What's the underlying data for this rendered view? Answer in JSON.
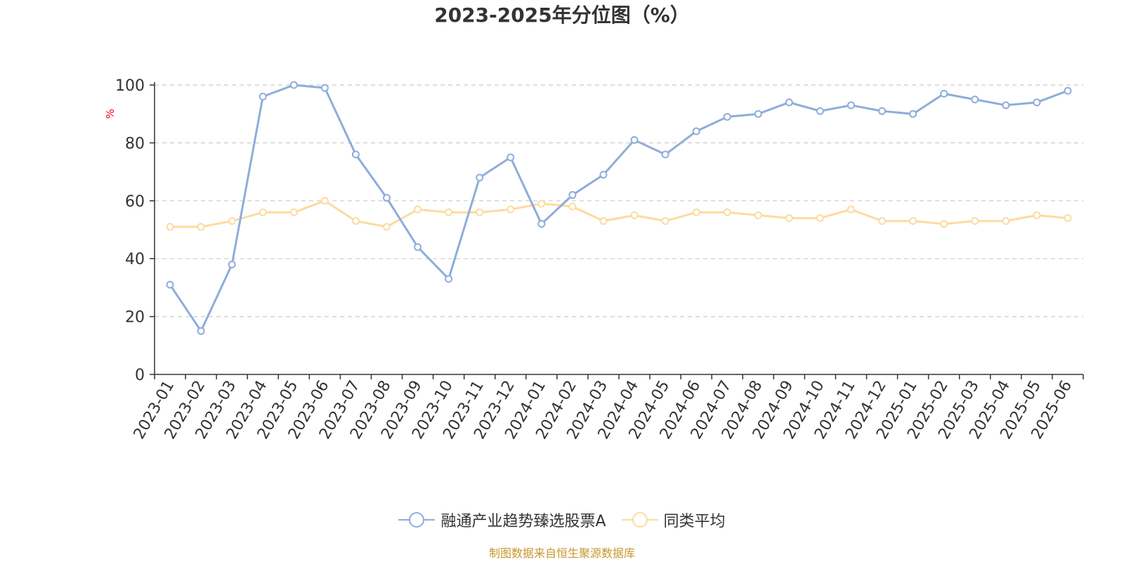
{
  "chart_data": {
    "type": "line",
    "title": "2023-2025年分位图（%）",
    "ylabel": "%",
    "xlabel": "",
    "ylim": [
      0,
      100
    ],
    "yticks": [
      0,
      20,
      40,
      60,
      80,
      100
    ],
    "grid": true,
    "legend_position": "bottom",
    "categories": [
      "2023-01",
      "2023-02",
      "2023-03",
      "2023-04",
      "2023-05",
      "2023-06",
      "2023-07",
      "2023-08",
      "2023-09",
      "2023-10",
      "2023-11",
      "2023-12",
      "2024-01",
      "2024-02",
      "2024-03",
      "2024-04",
      "2024-05",
      "2024-06",
      "2024-07",
      "2024-08",
      "2024-09",
      "2024-10",
      "2024-11",
      "2024-12",
      "2025-01",
      "2025-02",
      "2025-03",
      "2025-04",
      "2025-05",
      "2025-06"
    ],
    "series": [
      {
        "name": "融通产业趋势臻选股票A",
        "color": "#8eadda",
        "values": [
          31,
          15,
          38,
          96,
          100,
          99,
          76,
          61,
          44,
          33,
          68,
          75,
          52,
          62,
          69,
          81,
          76,
          84,
          89,
          90,
          94,
          91,
          93,
          91,
          90,
          97,
          95,
          93,
          94,
          98
        ]
      },
      {
        "name": "同类平均",
        "color": "#fcdba0",
        "values": [
          51,
          51,
          53,
          56,
          56,
          60,
          53,
          51,
          57,
          56,
          56,
          57,
          59,
          58,
          53,
          55,
          53,
          56,
          56,
          55,
          54,
          54,
          57,
          53,
          53,
          52,
          53,
          53,
          55,
          54
        ]
      }
    ]
  },
  "source_note": "制图数据来自恒生聚源数据库",
  "colors": {
    "title": "#333333",
    "axis": "#333333",
    "grid": "#cccccc",
    "ylabel": "#ff0000",
    "source": "#c8962e"
  }
}
